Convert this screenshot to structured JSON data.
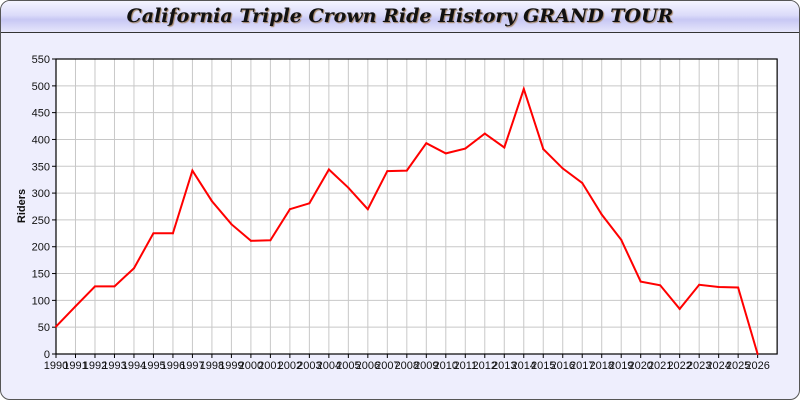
{
  "title": "California Triple Crown Ride History GRAND TOUR",
  "colors": {
    "line": "#ff0000",
    "grid": "#c8c8c8",
    "background": "#eeeefd"
  },
  "chart_data": {
    "type": "line",
    "title": "California Triple Crown Ride History GRAND TOUR",
    "xlabel": "",
    "ylabel": "Riders",
    "xlim": [
      1990,
      2027
    ],
    "ylim": [
      0,
      550
    ],
    "yticks": [
      0,
      50,
      100,
      150,
      200,
      250,
      300,
      350,
      400,
      450,
      500,
      550
    ],
    "grid": true,
    "x": [
      1990,
      1991,
      1992,
      1993,
      1994,
      1995,
      1996,
      1997,
      1998,
      1999,
      2000,
      2001,
      2002,
      2003,
      2004,
      2005,
      2006,
      2007,
      2008,
      2009,
      2010,
      2011,
      2012,
      2013,
      2014,
      2015,
      2016,
      2017,
      2018,
      2019,
      2020,
      2021,
      2022,
      2023,
      2024,
      2025,
      2026
    ],
    "series": [
      {
        "values": [
          51,
          89,
          126,
          126,
          160,
          225,
          225,
          342,
          285,
          242,
          211,
          212,
          270,
          281,
          344,
          310,
          270,
          341,
          342,
          393,
          374,
          383,
          411,
          385,
          494,
          382,
          346,
          319,
          260,
          213,
          135,
          128,
          84,
          129,
          125,
          124,
          0
        ]
      }
    ]
  }
}
